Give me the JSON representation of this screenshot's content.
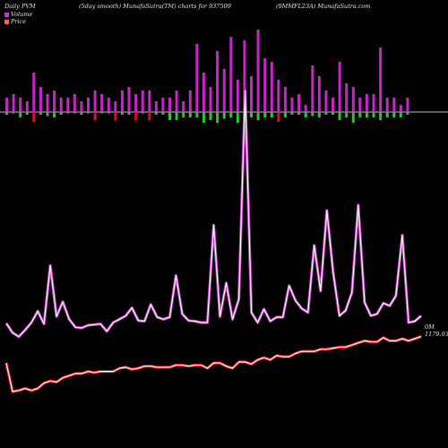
{
  "header": {
    "left": "Daily PVM",
    "middle": "(5day smooth) MunafaSutra(TM) charts for 937509",
    "right": "(9MMFL23A) MunafaSutra.com"
  },
  "legend": {
    "volume_label": "Volume",
    "price_label": "Price",
    "volume_color": "#cc33cc",
    "price_color": "#ff6633"
  },
  "colors": {
    "background": "#000000",
    "volume_bar": "#cc22cc",
    "delta_up": "#22cc22",
    "delta_down": "#dd1111",
    "volume_line": "#cc44cc",
    "price_line": "#ff2222"
  },
  "chart_data": {
    "type": "line",
    "series": [
      {
        "name": "Volume",
        "values": [
          0.74,
          0.6,
          0.54,
          0.64,
          0.75,
          0.92,
          0.73,
          1.6,
          0.84,
          1.06,
          0.8,
          0.68,
          0.67,
          0.71,
          0.72,
          0.73,
          0.62,
          0.75,
          0.8,
          0.85,
          0.97,
          0.78,
          0.77,
          1.02,
          0.83,
          0.8,
          0.83,
          1.45,
          0.88,
          0.78,
          0.77,
          0.75,
          0.75,
          2.2,
          0.84,
          1.34,
          0.8,
          1.1,
          4.2,
          0.9,
          0.75,
          0.95,
          0.77,
          0.83,
          0.83,
          1.3,
          1.08,
          0.96,
          0.9,
          1.9,
          1.22,
          2.42,
          1.5,
          0.85,
          0.93,
          1.2,
          2.5,
          1.05,
          0.85,
          0.88,
          1.04,
          1.0,
          1.15,
          2.05,
          0.75,
          0.77,
          0.85
        ],
        "last_label": "0M"
      },
      {
        "name": "Price",
        "values": [
          1155,
          1128,
          1129,
          1131,
          1129,
          1131,
          1136,
          1138,
          1137,
          1141,
          1143,
          1145,
          1145,
          1147,
          1146,
          1147,
          1147,
          1147,
          1150,
          1151,
          1149,
          1150,
          1152,
          1152,
          1151,
          1151,
          1151,
          1153,
          1153,
          1152,
          1153,
          1153,
          1150,
          1155,
          1155,
          1152,
          1150,
          1156,
          1156,
          1154,
          1158,
          1160,
          1158,
          1162,
          1161,
          1161,
          1164,
          1166,
          1166,
          1166,
          1168,
          1168,
          1169,
          1170,
          1170,
          1172,
          1174,
          1176,
          1175,
          1175,
          1179,
          1176,
          1176,
          1178,
          1176,
          1178,
          1180
        ],
        "last_label": "1179.93"
      }
    ],
    "bar_series": {
      "volume_bars": [
        0.2,
        0.25,
        0.2,
        0.15,
        0.55,
        0.35,
        0.25,
        0.3,
        0.2,
        0.2,
        0.25,
        0.15,
        0.2,
        0.3,
        0.25,
        0.2,
        0.15,
        0.3,
        0.35,
        0.25,
        0.3,
        0.3,
        0.15,
        0.2,
        0.2,
        0.3,
        0.15,
        0.3,
        0.95,
        0.55,
        0.35,
        0.85,
        0.6,
        1.05,
        0.45,
        1.0,
        0.5,
        1.15,
        0.75,
        0.7,
        0.45,
        0.35,
        0.2,
        0.25,
        0.1,
        0.65,
        0.5,
        0.3,
        0.2,
        0.7,
        0.4,
        0.35,
        0.2,
        0.25,
        0.25,
        0.9,
        0.2,
        0.2,
        0.1,
        0.2
      ],
      "delta_bars": [
        -0.1,
        -0.05,
        -0.2,
        -0.1,
        0.1,
        -0.1,
        -0.15,
        -0.2,
        -0.1,
        -0.05,
        -0.05,
        -0.1,
        -0.05,
        0.05,
        -0.05,
        -0.05,
        0.05,
        -0.1,
        -0.1,
        0.05,
        -0.05,
        0.05,
        -0.1,
        -0.1,
        -0.3,
        -0.3,
        -0.2,
        -0.2,
        -0.2,
        -0.4,
        -0.3,
        -0.4,
        -0.25,
        -0.2,
        -0.4,
        -0.3,
        -0.2,
        -0.3,
        -0.2,
        -0.2,
        0.1,
        -0.2,
        -0.1,
        -0.1,
        -0.2,
        -0.15,
        -0.2,
        -0.1,
        -0.1,
        -0.3,
        -0.2,
        -0.4,
        -0.2,
        -0.2,
        -0.2,
        -0.3,
        -0.2,
        -0.2,
        -0.2,
        -0.1
      ]
    },
    "title": "",
    "xlabel": "",
    "ylabel": "",
    "grid": false,
    "legend_position": "top-left"
  }
}
